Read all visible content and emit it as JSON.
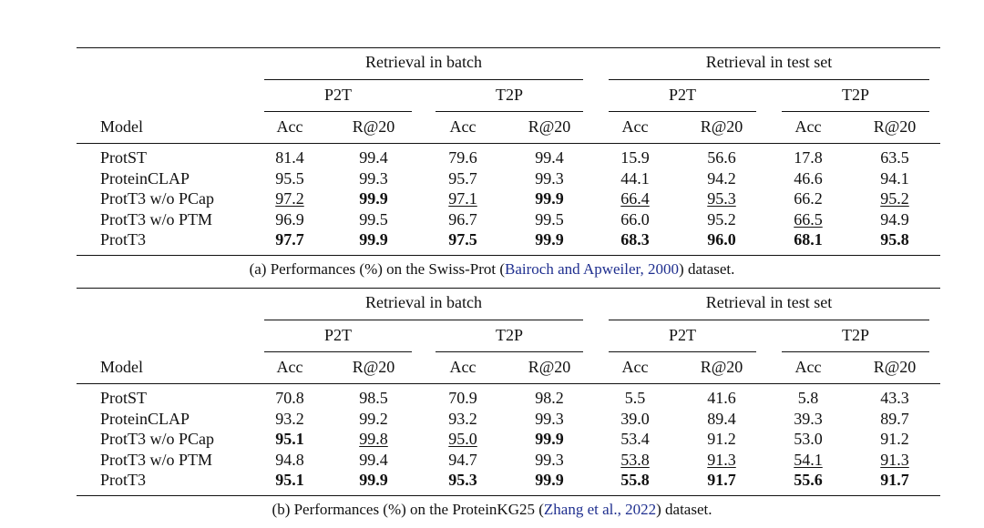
{
  "tables": [
    {
      "group_headers": [
        "Retrieval in batch",
        "Retrieval in test set"
      ],
      "sub_headers": [
        "P2T",
        "T2P",
        "P2T",
        "T2P"
      ],
      "col_headers": [
        "Model",
        "Acc",
        "R@20",
        "Acc",
        "R@20",
        "Acc",
        "R@20",
        "Acc",
        "R@20"
      ],
      "rows": [
        {
          "model": "ProtST",
          "cells": [
            {
              "v": "81.4"
            },
            {
              "v": "99.4"
            },
            {
              "v": "79.6"
            },
            {
              "v": "99.4"
            },
            {
              "v": "15.9"
            },
            {
              "v": "56.6"
            },
            {
              "v": "17.8"
            },
            {
              "v": "63.5"
            }
          ]
        },
        {
          "model": "ProteinCLAP",
          "cells": [
            {
              "v": "95.5"
            },
            {
              "v": "99.3"
            },
            {
              "v": "95.7"
            },
            {
              "v": "99.3"
            },
            {
              "v": "44.1"
            },
            {
              "v": "94.2"
            },
            {
              "v": "46.6"
            },
            {
              "v": "94.1"
            }
          ]
        },
        {
          "model": "ProtT3 w/o PCap",
          "cells": [
            {
              "v": "97.2",
              "u": true
            },
            {
              "v": "99.9",
              "b": true
            },
            {
              "v": "97.1",
              "u": true
            },
            {
              "v": "99.9",
              "b": true
            },
            {
              "v": "66.4",
              "u": true
            },
            {
              "v": "95.3",
              "u": true
            },
            {
              "v": "66.2"
            },
            {
              "v": "95.2",
              "u": true
            }
          ]
        },
        {
          "model": "ProtT3 w/o PTM",
          "cells": [
            {
              "v": "96.9"
            },
            {
              "v": "99.5"
            },
            {
              "v": "96.7"
            },
            {
              "v": "99.5"
            },
            {
              "v": "66.0"
            },
            {
              "v": "95.2"
            },
            {
              "v": "66.5",
              "u": true
            },
            {
              "v": "94.9"
            }
          ]
        },
        {
          "model": "ProtT3",
          "cells": [
            {
              "v": "97.7",
              "b": true
            },
            {
              "v": "99.9",
              "b": true
            },
            {
              "v": "97.5",
              "b": true
            },
            {
              "v": "99.9",
              "b": true
            },
            {
              "v": "68.3",
              "b": true
            },
            {
              "v": "96.0",
              "b": true
            },
            {
              "v": "68.1",
              "b": true
            },
            {
              "v": "95.8",
              "b": true
            }
          ]
        }
      ],
      "caption": {
        "prefix": "(a) Performances (%) on the Swiss-Prot (",
        "cite": "Bairoch and Apweiler, 2000",
        "suffix": ") dataset."
      }
    },
    {
      "group_headers": [
        "Retrieval in batch",
        "Retrieval in test set"
      ],
      "sub_headers": [
        "P2T",
        "T2P",
        "P2T",
        "T2P"
      ],
      "col_headers": [
        "Model",
        "Acc",
        "R@20",
        "Acc",
        "R@20",
        "Acc",
        "R@20",
        "Acc",
        "R@20"
      ],
      "rows": [
        {
          "model": "ProtST",
          "cells": [
            {
              "v": "70.8"
            },
            {
              "v": "98.5"
            },
            {
              "v": "70.9"
            },
            {
              "v": "98.2"
            },
            {
              "v": "5.5"
            },
            {
              "v": "41.6"
            },
            {
              "v": "5.8"
            },
            {
              "v": "43.3"
            }
          ]
        },
        {
          "model": "ProteinCLAP",
          "cells": [
            {
              "v": "93.2"
            },
            {
              "v": "99.2"
            },
            {
              "v": "93.2"
            },
            {
              "v": "99.3"
            },
            {
              "v": "39.0"
            },
            {
              "v": "89.4"
            },
            {
              "v": "39.3"
            },
            {
              "v": "89.7"
            }
          ]
        },
        {
          "model": "ProtT3 w/o PCap",
          "cells": [
            {
              "v": "95.1",
              "b": true
            },
            {
              "v": "99.8",
              "u": true
            },
            {
              "v": "95.0",
              "u": true
            },
            {
              "v": "99.9",
              "b": true
            },
            {
              "v": "53.4"
            },
            {
              "v": "91.2"
            },
            {
              "v": "53.0"
            },
            {
              "v": "91.2"
            }
          ]
        },
        {
          "model": "ProtT3 w/o PTM",
          "cells": [
            {
              "v": "94.8"
            },
            {
              "v": "99.4"
            },
            {
              "v": "94.7"
            },
            {
              "v": "99.3"
            },
            {
              "v": "53.8",
              "u": true
            },
            {
              "v": "91.3",
              "u": true
            },
            {
              "v": "54.1",
              "u": true
            },
            {
              "v": "91.3",
              "u": true
            }
          ]
        },
        {
          "model": "ProtT3",
          "cells": [
            {
              "v": "95.1",
              "b": true
            },
            {
              "v": "99.9",
              "b": true
            },
            {
              "v": "95.3",
              "b": true
            },
            {
              "v": "99.9",
              "b": true
            },
            {
              "v": "55.8",
              "b": true
            },
            {
              "v": "91.7",
              "b": true
            },
            {
              "v": "55.6",
              "b": true
            },
            {
              "v": "91.7",
              "b": true
            }
          ]
        }
      ],
      "caption": {
        "prefix": "(b) Performances (%) on the ProteinKG25 (",
        "cite": "Zhang et al., 2022",
        "suffix": ") dataset."
      }
    }
  ]
}
